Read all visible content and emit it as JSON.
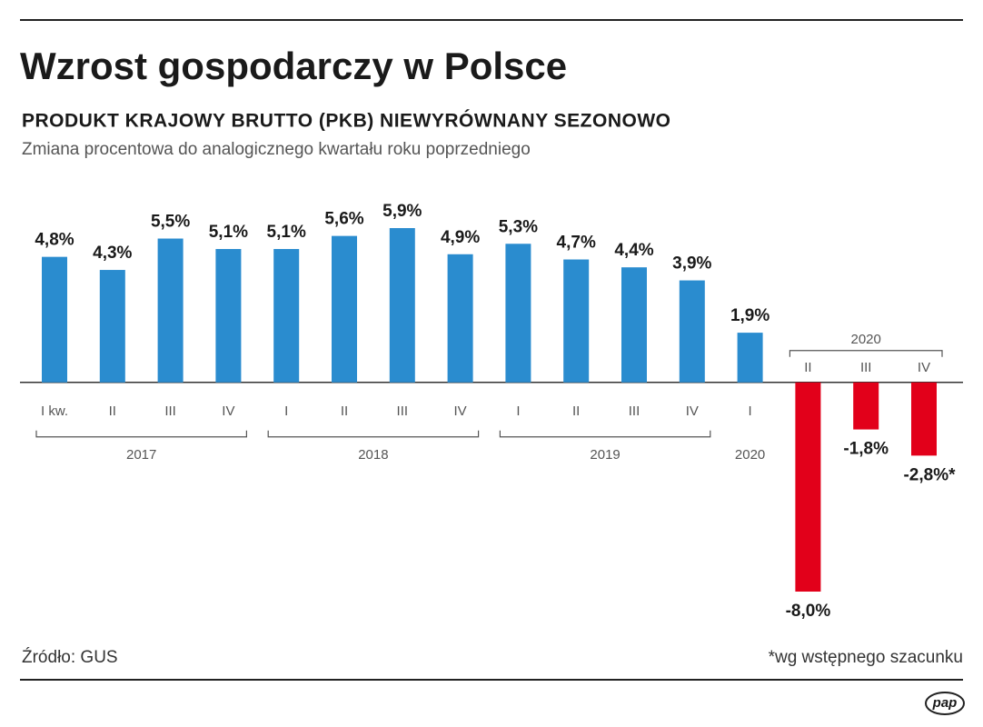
{
  "chart_data": {
    "type": "bar",
    "title": "Wzrost gospodarczy w Polsce",
    "subtitle": "PRODUKT KRAJOWY BRUTTO (PKB) NIEWYRÓWNANY SEZONOWO",
    "note": "Zmiana procentowa do analogicznego kwartału roku poprzedniego",
    "categories": [
      "I kw.",
      "II",
      "III",
      "IV",
      "I",
      "II",
      "III",
      "IV",
      "I",
      "II",
      "III",
      "IV",
      "I",
      "II",
      "III",
      "IV"
    ],
    "values": [
      4.8,
      4.3,
      5.5,
      5.1,
      5.1,
      5.6,
      5.9,
      4.9,
      5.3,
      4.7,
      4.4,
      3.9,
      1.9,
      -8.0,
      -1.8,
      -2.8
    ],
    "value_labels": [
      "4,8%",
      "4,3%",
      "5,5%",
      "5,1%",
      "5,1%",
      "5,6%",
      "5,9%",
      "4,9%",
      "5,3%",
      "4,7%",
      "4,4%",
      "3,9%",
      "1,9%",
      "-8,0%",
      "-1,8%",
      "-2,8%*"
    ],
    "groups": [
      {
        "name": "2017",
        "from": 0,
        "to": 3
      },
      {
        "name": "2018",
        "from": 4,
        "to": 7
      },
      {
        "name": "2019",
        "from": 8,
        "to": 11
      },
      {
        "name": "2020",
        "from": 12,
        "to": 12
      },
      {
        "name": "2020",
        "from": 13,
        "to": 15
      }
    ],
    "positive_color": "#2a8ccf",
    "negative_color": "#e2001a",
    "source": "Źródło: GUS",
    "footnote": "*wg wstępnego szacunku",
    "logo": "pap"
  }
}
